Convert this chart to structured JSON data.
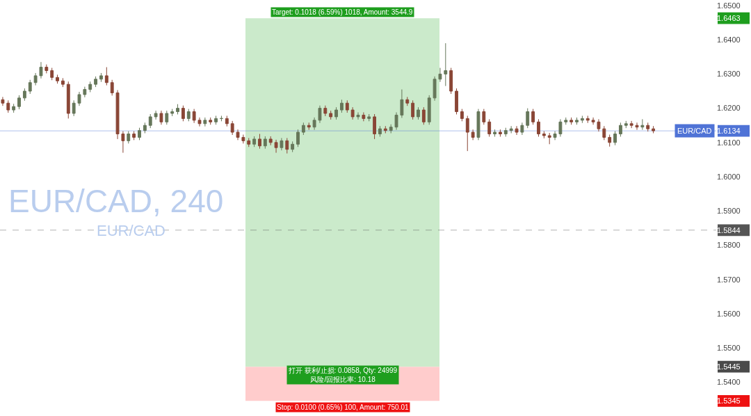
{
  "chart_data": {
    "type": "candlestick",
    "categories": [
      null,
      null,
      null,
      null,
      null,
      null,
      null,
      null,
      null,
      null,
      null,
      null,
      null,
      null,
      null,
      null,
      null,
      null,
      null,
      null,
      null,
      null,
      null,
      null,
      null,
      null,
      null,
      null,
      null,
      null,
      null,
      null,
      null,
      null,
      null,
      null,
      null,
      null,
      null,
      null,
      null,
      null,
      null,
      null,
      null,
      null,
      null,
      null,
      null,
      null,
      null,
      null,
      null,
      null,
      null,
      null,
      null,
      null,
      null,
      null,
      null,
      null,
      null,
      null,
      null,
      null,
      null,
      null,
      null,
      null,
      null,
      null,
      null,
      null,
      null,
      null,
      null,
      null,
      null,
      null,
      null,
      null,
      null,
      null,
      null,
      null,
      null,
      null,
      null,
      null,
      null,
      null,
      null,
      null,
      null,
      null,
      null,
      null,
      null,
      null,
      null,
      null,
      null,
      null,
      null,
      null,
      null,
      null,
      null,
      null,
      null,
      null,
      null,
      null,
      null,
      null,
      null,
      null,
      null,
      null,
      null,
      null,
      null,
      null,
      null,
      null,
      null,
      null,
      null,
      null,
      null
    ],
    "ohlc": [
      [
        1.6225,
        1.6233,
        1.6207,
        1.6215
      ],
      [
        1.6215,
        1.6223,
        1.6187,
        1.6195
      ],
      [
        1.6195,
        1.6213,
        1.6187,
        1.6205
      ],
      [
        1.6205,
        1.6238,
        1.6197,
        1.623
      ],
      [
        1.623,
        1.6258,
        1.6222,
        1.625
      ],
      [
        1.625,
        1.6283,
        1.6242,
        1.6275
      ],
      [
        1.6275,
        1.6303,
        1.6267,
        1.6295
      ],
      [
        1.6295,
        1.6335,
        1.6287,
        1.632
      ],
      [
        1.632,
        1.6328,
        1.6302,
        1.631
      ],
      [
        1.631,
        1.6318,
        1.6282,
        1.629
      ],
      [
        1.629,
        1.6298,
        1.6272,
        1.628
      ],
      [
        1.628,
        1.6288,
        1.6262,
        1.627
      ],
      [
        1.627,
        1.6278,
        1.617,
        1.6185
      ],
      [
        1.6185,
        1.6223,
        1.6177,
        1.6215
      ],
      [
        1.6215,
        1.6248,
        1.6207,
        1.624
      ],
      [
        1.624,
        1.6263,
        1.6232,
        1.6255
      ],
      [
        1.6255,
        1.6278,
        1.6247,
        1.627
      ],
      [
        1.627,
        1.6293,
        1.6262,
        1.6285
      ],
      [
        1.6285,
        1.6303,
        1.6277,
        1.6295
      ],
      [
        1.6295,
        1.632,
        1.6267,
        1.6275
      ],
      [
        1.6275,
        1.6283,
        1.6237,
        1.6245
      ],
      [
        1.6245,
        1.6253,
        1.611,
        1.6125
      ],
      [
        1.6125,
        1.6133,
        1.607,
        1.6105
      ],
      [
        1.6105,
        1.6133,
        1.6097,
        1.6125
      ],
      [
        1.6125,
        1.6133,
        1.6107,
        1.6115
      ],
      [
        1.6115,
        1.6143,
        1.6107,
        1.6135
      ],
      [
        1.6135,
        1.6158,
        1.6127,
        1.615
      ],
      [
        1.615,
        1.6183,
        1.6142,
        1.6175
      ],
      [
        1.6175,
        1.6193,
        1.6167,
        1.6185
      ],
      [
        1.6185,
        1.6193,
        1.6152,
        1.616
      ],
      [
        1.616,
        1.6193,
        1.6152,
        1.6185
      ],
      [
        1.6185,
        1.6198,
        1.6177,
        1.619
      ],
      [
        1.619,
        1.6212,
        1.6182,
        1.62
      ],
      [
        1.62,
        1.6208,
        1.6162,
        1.617
      ],
      [
        1.617,
        1.6198,
        1.6162,
        1.619
      ],
      [
        1.619,
        1.6198,
        1.6157,
        1.6165
      ],
      [
        1.6165,
        1.6173,
        1.6147,
        1.6155
      ],
      [
        1.6155,
        1.6173,
        1.6147,
        1.6165
      ],
      [
        1.6165,
        1.6173,
        1.6152,
        1.616
      ],
      [
        1.616,
        1.6178,
        1.6152,
        1.617
      ],
      [
        1.617,
        1.6178,
        1.6162,
        1.617
      ],
      [
        1.617,
        1.6178,
        1.6147,
        1.6155
      ],
      [
        1.6155,
        1.6163,
        1.6122,
        1.613
      ],
      [
        1.613,
        1.6138,
        1.6107,
        1.6115
      ],
      [
        1.6115,
        1.6123,
        1.6097,
        1.6105
      ],
      [
        1.6105,
        1.6113,
        1.6087,
        1.6095
      ],
      [
        1.6095,
        1.6118,
        1.6087,
        1.611
      ],
      [
        1.611,
        1.6125,
        1.6082,
        1.609
      ],
      [
        1.609,
        1.6118,
        1.6082,
        1.611
      ],
      [
        1.611,
        1.6118,
        1.6092,
        1.61
      ],
      [
        1.61,
        1.6108,
        1.607,
        1.6085
      ],
      [
        1.6085,
        1.6113,
        1.6077,
        1.6105
      ],
      [
        1.6105,
        1.6113,
        1.6068,
        1.608
      ],
      [
        1.608,
        1.6103,
        1.6072,
        1.6095
      ],
      [
        1.6095,
        1.6138,
        1.6087,
        1.613
      ],
      [
        1.613,
        1.6158,
        1.6122,
        1.615
      ],
      [
        1.615,
        1.6158,
        1.6137,
        1.6145
      ],
      [
        1.6145,
        1.6173,
        1.6137,
        1.6165
      ],
      [
        1.6165,
        1.6208,
        1.6157,
        1.62
      ],
      [
        1.62,
        1.6208,
        1.6177,
        1.6185
      ],
      [
        1.6185,
        1.6193,
        1.6167,
        1.6175
      ],
      [
        1.6175,
        1.6203,
        1.6167,
        1.6195
      ],
      [
        1.6195,
        1.6225,
        1.6187,
        1.6215
      ],
      [
        1.6215,
        1.6223,
        1.6187,
        1.6195
      ],
      [
        1.6195,
        1.6203,
        1.6167,
        1.6175
      ],
      [
        1.6175,
        1.6188,
        1.6167,
        1.618
      ],
      [
        1.618,
        1.6188,
        1.6162,
        1.617
      ],
      [
        1.617,
        1.6183,
        1.6162,
        1.6175
      ],
      [
        1.6175,
        1.6183,
        1.611,
        1.6125
      ],
      [
        1.6125,
        1.6148,
        1.6117,
        1.614
      ],
      [
        1.614,
        1.6148,
        1.6127,
        1.6135
      ],
      [
        1.6135,
        1.6153,
        1.6127,
        1.6145
      ],
      [
        1.6145,
        1.6188,
        1.6137,
        1.618
      ],
      [
        1.618,
        1.6255,
        1.6172,
        1.6225
      ],
      [
        1.6225,
        1.6233,
        1.6207,
        1.6215
      ],
      [
        1.6215,
        1.6223,
        1.6167,
        1.6175
      ],
      [
        1.6175,
        1.6203,
        1.6167,
        1.6195
      ],
      [
        1.6195,
        1.6203,
        1.6152,
        1.616
      ],
      [
        1.616,
        1.6238,
        1.6152,
        1.623
      ],
      [
        1.623,
        1.6293,
        1.6222,
        1.6285
      ],
      [
        1.6285,
        1.6318,
        1.6277,
        1.63
      ],
      [
        1.63,
        1.639,
        1.6265,
        1.631
      ],
      [
        1.631,
        1.6318,
        1.6242,
        1.625
      ],
      [
        1.625,
        1.6258,
        1.6182,
        1.619
      ],
      [
        1.619,
        1.6198,
        1.6162,
        1.617
      ],
      [
        1.617,
        1.6178,
        1.6075,
        1.613
      ],
      [
        1.613,
        1.6138,
        1.6107,
        1.6115
      ],
      [
        1.6115,
        1.6198,
        1.6107,
        1.619
      ],
      [
        1.619,
        1.6198,
        1.6152,
        1.616
      ],
      [
        1.616,
        1.6168,
        1.6117,
        1.6125
      ],
      [
        1.6125,
        1.6138,
        1.6117,
        1.613
      ],
      [
        1.613,
        1.6138,
        1.6117,
        1.6125
      ],
      [
        1.6125,
        1.6143,
        1.6117,
        1.6135
      ],
      [
        1.6135,
        1.6148,
        1.6127,
        1.614
      ],
      [
        1.614,
        1.6148,
        1.6122,
        1.613
      ],
      [
        1.613,
        1.6158,
        1.6122,
        1.615
      ],
      [
        1.615,
        1.62,
        1.6142,
        1.619
      ],
      [
        1.619,
        1.6198,
        1.6152,
        1.616
      ],
      [
        1.616,
        1.6168,
        1.6117,
        1.6125
      ],
      [
        1.6125,
        1.6133,
        1.6112,
        1.612
      ],
      [
        1.612,
        1.6128,
        1.6095,
        1.6115
      ],
      [
        1.6115,
        1.6133,
        1.6107,
        1.6125
      ],
      [
        1.6125,
        1.6168,
        1.6117,
        1.616
      ],
      [
        1.616,
        1.6173,
        1.6152,
        1.6165
      ],
      [
        1.6165,
        1.6173,
        1.6152,
        1.616
      ],
      [
        1.616,
        1.6173,
        1.6152,
        1.6165
      ],
      [
        1.6165,
        1.6178,
        1.6157,
        1.617
      ],
      [
        1.617,
        1.6178,
        1.6157,
        1.6165
      ],
      [
        1.6165,
        1.6173,
        1.6152,
        1.616
      ],
      [
        1.616,
        1.6168,
        1.6132,
        1.614
      ],
      [
        1.614,
        1.6148,
        1.6107,
        1.6115
      ],
      [
        1.6115,
        1.6123,
        1.6088,
        1.61
      ],
      [
        1.61,
        1.6133,
        1.6092,
        1.6125
      ],
      [
        1.6125,
        1.6158,
        1.6117,
        1.615
      ],
      [
        1.615,
        1.6163,
        1.6142,
        1.6155
      ],
      [
        1.6155,
        1.6163,
        1.6142,
        1.615
      ],
      [
        1.615,
        1.6158,
        1.6137,
        1.6145
      ],
      [
        1.6145,
        1.6168,
        1.6137,
        1.615
      ],
      [
        1.615,
        1.6158,
        1.6132,
        1.614
      ],
      [
        1.614,
        1.6148,
        1.6127,
        1.6134
      ],
      null,
      null,
      null,
      null,
      null,
      null,
      null,
      null,
      null,
      null,
      null
    ],
    "colors": [
      "#8a4636",
      "#8a4636",
      "#66775a",
      "#66775a",
      "#66775a",
      "#66775a",
      "#66775a",
      "#66775a",
      "#8a4636",
      "#8a4636",
      "#8a4636",
      "#8a4636",
      "#8a4636",
      "#66775a",
      "#66775a",
      "#66775a",
      "#66775a",
      "#66775a",
      "#66775a",
      "#8a4636",
      "#8a4636",
      "#8a4636",
      "#8a4636",
      "#66775a",
      "#8a4636",
      "#66775a",
      "#66775a",
      "#66775a",
      "#66775a",
      "#8a4636",
      "#66775a",
      "#66775a",
      "#66775a",
      "#8a4636",
      "#66775a",
      "#8a4636",
      "#8a4636",
      "#66775a",
      "#8a4636",
      "#66775a",
      "#66775a",
      "#8a4636",
      "#8a4636",
      "#8a4636",
      "#8a4636",
      "#8a4636",
      "#66775a",
      "#8a4636",
      "#66775a",
      "#8a4636",
      "#8a4636",
      "#66775a",
      "#8a4636",
      "#66775a",
      "#66775a",
      "#66775a",
      "#8a4636",
      "#66775a",
      "#66775a",
      "#8a4636",
      "#8a4636",
      "#66775a",
      "#66775a",
      "#8a4636",
      "#8a4636",
      "#66775a",
      "#8a4636",
      "#66775a",
      "#8a4636",
      "#66775a",
      "#8a4636",
      "#66775a",
      "#66775a",
      "#66775a",
      "#8a4636",
      "#8a4636",
      "#66775a",
      "#8a4636",
      "#66775a",
      "#66775a",
      "#66775a",
      "#66775a",
      "#8a4636",
      "#8a4636",
      "#8a4636",
      "#8a4636",
      "#8a4636",
      "#66775a",
      "#8a4636",
      "#8a4636",
      "#66775a",
      "#8a4636",
      "#66775a",
      "#66775a",
      "#8a4636",
      "#66775a",
      "#66775a",
      "#8a4636",
      "#8a4636",
      "#8a4636",
      "#8a4636",
      "#66775a",
      "#66775a",
      "#66775a",
      "#8a4636",
      "#66775a",
      "#66775a",
      "#8a4636",
      "#8a4636",
      "#8a4636",
      "#8a4636",
      "#8a4636",
      "#66775a",
      "#66775a",
      "#66775a",
      "#8a4636",
      "#8a4636",
      "#66775a",
      "#8a4636",
      "#8a4636",
      null,
      null,
      null,
      null,
      null,
      null,
      null,
      null,
      null,
      null,
      null
    ],
    "ylim": [
      1.5301,
      1.65
    ],
    "yticks": [
      {
        "value": 1.54,
        "label": "1.5400"
      },
      {
        "value": 1.55,
        "label": "1.5500"
      },
      {
        "value": 1.56,
        "label": "1.5600"
      },
      {
        "value": 1.57,
        "label": "1.5700"
      },
      {
        "value": 1.58,
        "label": "1.5800"
      },
      {
        "value": 1.59,
        "label": "1.5900"
      },
      {
        "value": 1.6,
        "label": "1.6000"
      },
      {
        "value": 1.61,
        "label": "1.6100"
      },
      {
        "value": 1.62,
        "label": "1.6200"
      },
      {
        "value": 1.63,
        "label": "1.6300"
      },
      {
        "value": 1.64,
        "label": "1.6400"
      },
      {
        "value": 1.65,
        "label": "1.6500"
      },
      {
        "value": 1.6463,
        "label": "1.6463"
      },
      {
        "value": 1.6134,
        "label": "1.6134"
      },
      {
        "value": 1.5844,
        "label": "1.5844"
      },
      {
        "value": 1.5445,
        "label": "1.5445"
      },
      {
        "value": 1.5345,
        "label": "1.5345"
      }
    ],
    "tick_labels": "y",
    "grid": false,
    "legend": false,
    "bands": [
      {
        "axis": "y",
        "from": 1.5445,
        "to": 1.6463,
        "color": "#cbeacb",
        "label": "Target: 0.1018 (6.59%) 1018, Amount: 3544.9"
      },
      {
        "axis": "y",
        "from": 1.5345,
        "to": 1.5445,
        "color": "#ffcccc",
        "label": "Stop: 0.0100 (0.65%) 100, Amount: 750.01"
      }
    ],
    "ref_lines": [
      {
        "axis": "y",
        "value": 1.6134,
        "label": "EUR/CAD",
        "color": "#4f73d6",
        "line_style": "solid"
      },
      {
        "axis": "y",
        "value": 1.5844,
        "label": null,
        "color": "#555555",
        "line_style": "dashed"
      }
    ],
    "annotations": [
      "EUR/CAD, 240",
      "EUR/CAD",
      {
        "text": "打开 获利/止损: 0.0858, Qty: 24999\n风险/回报比率: 10.18",
        "y": 1.5445
      }
    ]
  }
}
